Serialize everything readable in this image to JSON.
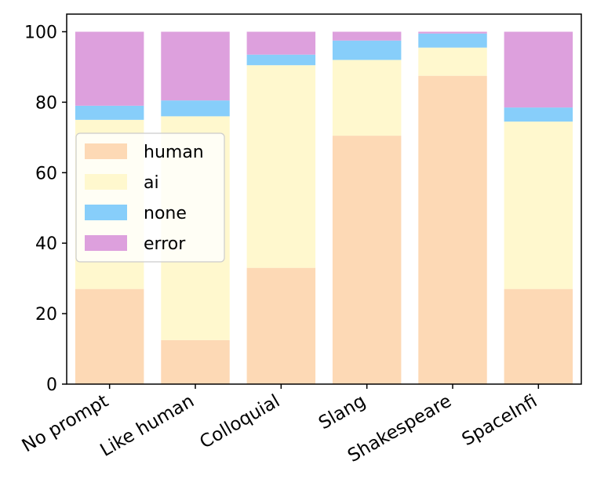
{
  "chart_data": {
    "type": "bar",
    "stacked": true,
    "title": "",
    "xlabel": "",
    "ylabel": "",
    "categories": [
      "No prompt",
      "Like human",
      "Colloquial",
      "Slang",
      "Shakespeare",
      "SpaceInfi"
    ],
    "ylim": [
      0,
      105
    ],
    "yticks": [
      0,
      20,
      40,
      60,
      80,
      100
    ],
    "legend_position": "center-left",
    "series": [
      {
        "name": "human",
        "color": "#FDD9B5",
        "values": [
          27,
          12.5,
          33,
          70.5,
          87.5,
          27
        ]
      },
      {
        "name": "ai",
        "color": "#FFF8CE",
        "values": [
          48,
          63.5,
          57.5,
          21.5,
          8,
          47.5
        ]
      },
      {
        "name": "none",
        "color": "#87CEFA",
        "values": [
          4,
          4.5,
          3,
          5.5,
          4,
          4
        ]
      },
      {
        "name": "error",
        "color": "#DDA0DD",
        "values": [
          21,
          19.5,
          6.5,
          2.5,
          0.5,
          21.5
        ]
      }
    ]
  }
}
